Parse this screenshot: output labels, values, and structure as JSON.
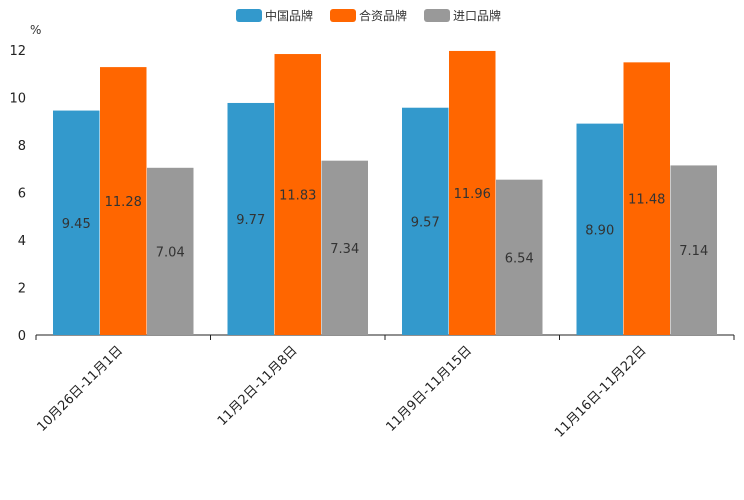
{
  "chart_data": {
    "type": "bar",
    "title": "",
    "xlabel": "",
    "ylabel": "%",
    "ylim": [
      0,
      12
    ],
    "yticks": [
      0,
      2,
      4,
      6,
      8,
      10,
      12
    ],
    "grid": false,
    "legend_position": "top-center",
    "categories": [
      "10月26日-11月1日",
      "11月2日-11月8日",
      "11月9日-11月15日",
      "11月16日-11月22日"
    ],
    "series": [
      {
        "name": "中国品牌",
        "color": "#3399CC",
        "values": [
          9.45,
          9.77,
          9.57,
          8.9
        ]
      },
      {
        "name": "合资品牌",
        "color": "#FF6600",
        "values": [
          11.28,
          11.83,
          11.96,
          11.48
        ]
      },
      {
        "name": "进口品牌",
        "color": "#999999",
        "values": [
          7.04,
          7.34,
          6.54,
          7.14
        ]
      }
    ]
  }
}
